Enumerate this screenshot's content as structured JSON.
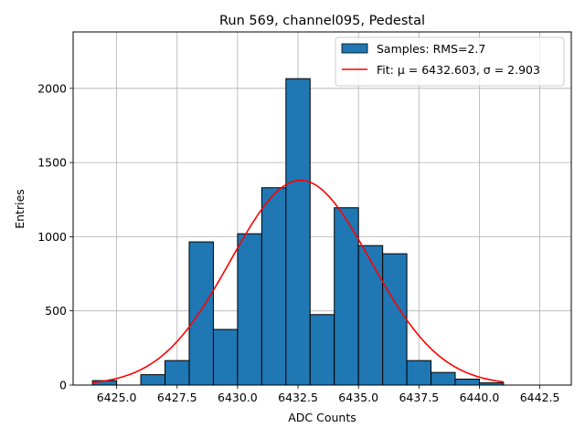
{
  "chart_data": {
    "type": "histogram",
    "title": "Run 569, channel095, Pedestal",
    "xlabel": "ADC Counts",
    "ylabel": "Entries",
    "xlim": [
      6423.2,
      6443.8
    ],
    "ylim": [
      0,
      2380
    ],
    "xticks": [
      6425.0,
      6427.5,
      6430.0,
      6432.5,
      6435.0,
      6437.5,
      6440.0,
      6442.5
    ],
    "xtick_labels": [
      "6425.0",
      "6427.5",
      "6430.0",
      "6432.5",
      "6435.0",
      "6437.5",
      "6440.0",
      "6442.5"
    ],
    "yticks": [
      0,
      500,
      1000,
      1500,
      2000
    ],
    "ytick_labels": [
      "0",
      "500",
      "1000",
      "1500",
      "2000"
    ],
    "grid": true,
    "bar_color": "#1f77b4",
    "fit_color": "#ff0000",
    "bins": [
      {
        "left": 6424.0,
        "right": 6425.0,
        "count": 30
      },
      {
        "left": 6426.0,
        "right": 6427.0,
        "count": 70
      },
      {
        "left": 6427.0,
        "right": 6428.0,
        "count": 165
      },
      {
        "left": 6428.0,
        "right": 6429.0,
        "count": 965
      },
      {
        "left": 6429.0,
        "right": 6430.0,
        "count": 375
      },
      {
        "left": 6430.0,
        "right": 6431.0,
        "count": 1020
      },
      {
        "left": 6431.0,
        "right": 6432.0,
        "count": 1330
      },
      {
        "left": 6432.0,
        "right": 6433.0,
        "count": 2065
      },
      {
        "left": 6433.0,
        "right": 6434.0,
        "count": 475
      },
      {
        "left": 6434.0,
        "right": 6435.0,
        "count": 1195
      },
      {
        "left": 6435.0,
        "right": 6436.0,
        "count": 940
      },
      {
        "left": 6436.0,
        "right": 6437.0,
        "count": 885
      },
      {
        "left": 6437.0,
        "right": 6438.0,
        "count": 165
      },
      {
        "left": 6438.0,
        "right": 6439.0,
        "count": 85
      },
      {
        "left": 6439.0,
        "right": 6440.0,
        "count": 40
      },
      {
        "left": 6440.0,
        "right": 6441.0,
        "count": 15
      }
    ],
    "fit": {
      "mu": 6432.603,
      "sigma": 2.903,
      "amplitude": 1380,
      "x_range": [
        6424.0,
        6441.0
      ]
    },
    "legend": {
      "placement": "top-right",
      "entries": [
        {
          "name": "Samples: RMS=2.7",
          "type": "bar"
        },
        {
          "name": "Fit: μ = 6432.603, σ = 2.903",
          "type": "line"
        }
      ]
    }
  }
}
